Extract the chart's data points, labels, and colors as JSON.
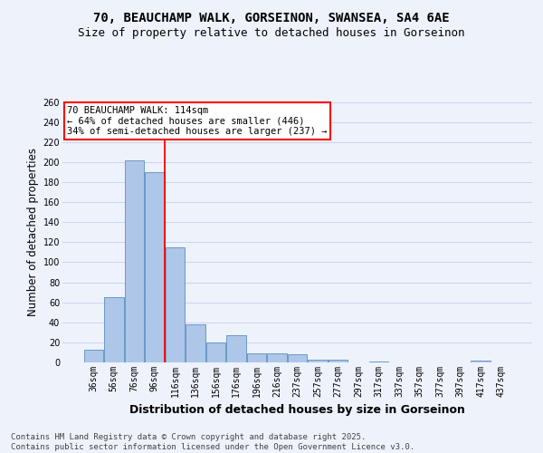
{
  "title_line1": "70, BEAUCHAMP WALK, GORSEINON, SWANSEA, SA4 6AE",
  "title_line2": "Size of property relative to detached houses in Gorseinon",
  "xlabel": "Distribution of detached houses by size in Gorseinon",
  "ylabel": "Number of detached properties",
  "categories": [
    "36sqm",
    "56sqm",
    "76sqm",
    "96sqm",
    "116sqm",
    "136sqm",
    "156sqm",
    "176sqm",
    "196sqm",
    "216sqm",
    "237sqm",
    "257sqm",
    "277sqm",
    "297sqm",
    "317sqm",
    "337sqm",
    "357sqm",
    "377sqm",
    "397sqm",
    "417sqm",
    "437sqm"
  ],
  "values": [
    13,
    65,
    202,
    190,
    115,
    38,
    20,
    27,
    9,
    9,
    8,
    3,
    3,
    0,
    1,
    0,
    0,
    0,
    0,
    2,
    0
  ],
  "bar_color": "#aec6e8",
  "bar_edge_color": "#5a8fc2",
  "red_line_index": 4,
  "annotation_text": "70 BEAUCHAMP WALK: 114sqm\n← 64% of detached houses are smaller (446)\n34% of semi-detached houses are larger (237) →",
  "ylim": [
    0,
    260
  ],
  "yticks": [
    0,
    20,
    40,
    60,
    80,
    100,
    120,
    140,
    160,
    180,
    200,
    220,
    240,
    260
  ],
  "footer": "Contains HM Land Registry data © Crown copyright and database right 2025.\nContains public sector information licensed under the Open Government Licence v3.0.",
  "background_color": "#eef2fb",
  "grid_color": "#c8d4f0",
  "title_fontsize": 10,
  "subtitle_fontsize": 9,
  "axis_label_fontsize": 8.5,
  "tick_fontsize": 7,
  "annotation_fontsize": 7.5,
  "footer_fontsize": 6.5
}
